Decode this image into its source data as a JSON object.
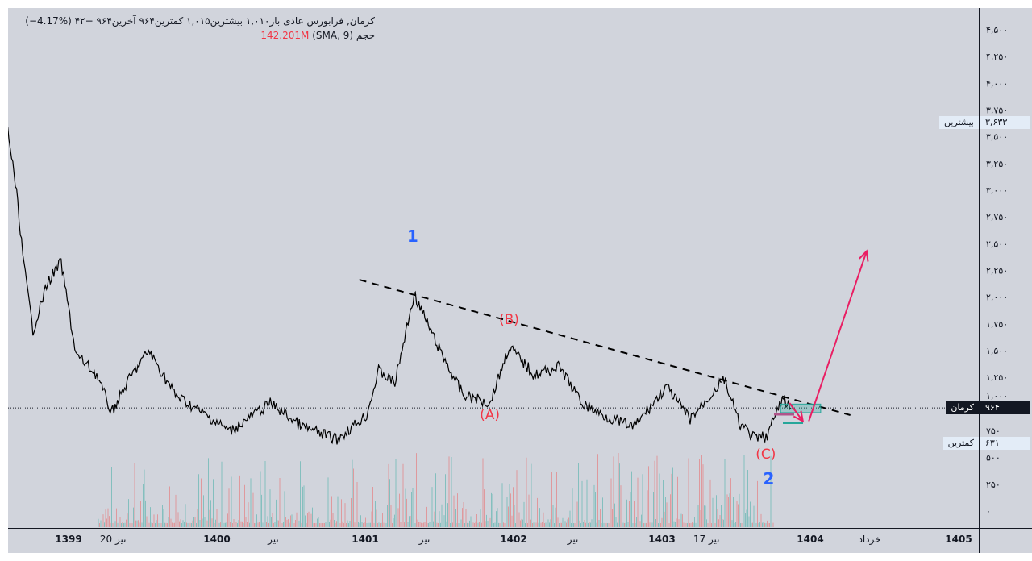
{
  "header": {
    "symbol": "کرمان, فرابورس عادی",
    "open_label": "باز",
    "open": "۱,۰۱۰",
    "high_label": "بیشترین",
    "high": "۱,۰۱۵",
    "low_label": "کمترین",
    "low": "۹۶۴",
    "close_label": "آخرین",
    "close": "۹۶۴",
    "change": "−۴۲",
    "change_pct": "(−4.17%)",
    "volume_label": "حجم",
    "volume_indicator": "(SMA, 9)",
    "volume_value": "142.201M"
  },
  "price_labels": {
    "high": {
      "label": "بیشترین",
      "value": "۳,۶۳۳"
    },
    "last": {
      "label": "کرمان",
      "value": "۹۶۴"
    },
    "low": {
      "label": "کمترین",
      "value": "۶۳۱"
    }
  },
  "colors": {
    "background": "#d1d4dc",
    "price_line": "#000000",
    "up_volume": "#26a69a",
    "down_volume": "#ef5350",
    "wave_label_blue": "#2962ff",
    "wave_label_red": "#f23645",
    "arrow": "#e91e63",
    "box": "#26a69a"
  },
  "chart_data": {
    "type": "line",
    "y_axis": {
      "position": "right",
      "range": [
        0,
        4500
      ],
      "ticks": [
        "۰",
        "۲۵۰",
        "۵۰۰",
        "۷۵۰",
        "۱,۰۰۰",
        "۱,۲۵۰",
        "۱,۵۰۰",
        "۱,۷۵۰",
        "۲,۰۰۰",
        "۲,۲۵۰",
        "۲,۵۰۰",
        "۲,۷۵۰",
        "۳,۰۰۰",
        "۳,۲۵۰",
        "۳,۵۰۰",
        "۳,۷۵۰",
        "۴,۰۰۰",
        "۴,۲۵۰",
        "۴,۵۰۰"
      ],
      "tick_values": [
        0,
        250,
        500,
        750,
        1000,
        1250,
        1500,
        1750,
        2000,
        2250,
        2500,
        2750,
        3000,
        3250,
        3500,
        3750,
        4000,
        4250,
        4500
      ]
    },
    "x_axis": {
      "ticks": [
        {
          "label": "1399",
          "x": 1399
        },
        {
          "label": "20 تیر",
          "x": 1399.3
        },
        {
          "label": "1400",
          "x": 1400
        },
        {
          "label": "تیر",
          "x": 1400.38
        },
        {
          "label": "1401",
          "x": 1401
        },
        {
          "label": "تیر",
          "x": 1401.4
        },
        {
          "label": "1402",
          "x": 1402
        },
        {
          "label": "تیر",
          "x": 1402.4
        },
        {
          "label": "1403",
          "x": 1403
        },
        {
          "label": "17 تیر",
          "x": 1403.3
        },
        {
          "label": "1404",
          "x": 1404
        },
        {
          "label": "خرداد",
          "x": 1404.4
        },
        {
          "label": "1405",
          "x": 1405
        }
      ]
    },
    "grid": false,
    "series": [
      {
        "points": [
          [
            1398.59,
            3573
          ],
          [
            1398.65,
            2970
          ],
          [
            1398.7,
            2291
          ],
          [
            1398.76,
            1688
          ],
          [
            1398.86,
            2140
          ],
          [
            1398.95,
            2329
          ],
          [
            1399.05,
            1462
          ],
          [
            1399.19,
            1274
          ],
          [
            1399.29,
            920
          ],
          [
            1399.41,
            1236
          ],
          [
            1399.54,
            1500
          ],
          [
            1399.72,
            1085
          ],
          [
            1400.09,
            746
          ],
          [
            1400.36,
            1010
          ],
          [
            1400.58,
            784
          ],
          [
            1400.81,
            671
          ],
          [
            1401.01,
            897
          ],
          [
            1401.09,
            1312
          ],
          [
            1401.2,
            1198
          ],
          [
            1401.33,
            2028
          ],
          [
            1401.49,
            1538
          ],
          [
            1401.66,
            1085
          ],
          [
            1401.84,
            1010
          ],
          [
            1401.97,
            1538
          ],
          [
            1402.14,
            1274
          ],
          [
            1402.31,
            1349
          ],
          [
            1402.46,
            1010
          ],
          [
            1402.6,
            897
          ],
          [
            1402.81,
            784
          ],
          [
            1403.03,
            1161
          ],
          [
            1403.19,
            859
          ],
          [
            1403.42,
            1236
          ],
          [
            1403.52,
            822
          ],
          [
            1403.63,
            671
          ],
          [
            1403.71,
            708
          ],
          [
            1403.81,
            1048
          ],
          [
            1403.87,
            964
          ]
        ]
      }
    ],
    "annotations": {
      "wave_labels": [
        {
          "text": "1",
          "x": 1401.32,
          "y": 2518,
          "color": "blue"
        },
        {
          "text": "2",
          "x": 1403.72,
          "y": 250,
          "color": "blue"
        },
        {
          "text": "(A)",
          "x": 1401.84,
          "y": 860,
          "color": "red"
        },
        {
          "text": "(B)",
          "x": 1401.97,
          "y": 1750,
          "color": "red"
        },
        {
          "text": "(C)",
          "x": 1403.7,
          "y": 490,
          "color": "red"
        }
      ],
      "trendline": [
        [
          1400.96,
          2163
        ],
        [
          1404.27,
          897
        ]
      ],
      "arrow_down": [
        [
          1403.86,
          1010
        ],
        [
          1403.95,
          840
        ]
      ],
      "arrow_up": [
        [
          1403.99,
          840
        ],
        [
          1404.38,
          2430
        ]
      ],
      "box": [
        [
          1403.8,
          1000
        ],
        [
          1404.07,
          920
        ]
      ]
    }
  }
}
